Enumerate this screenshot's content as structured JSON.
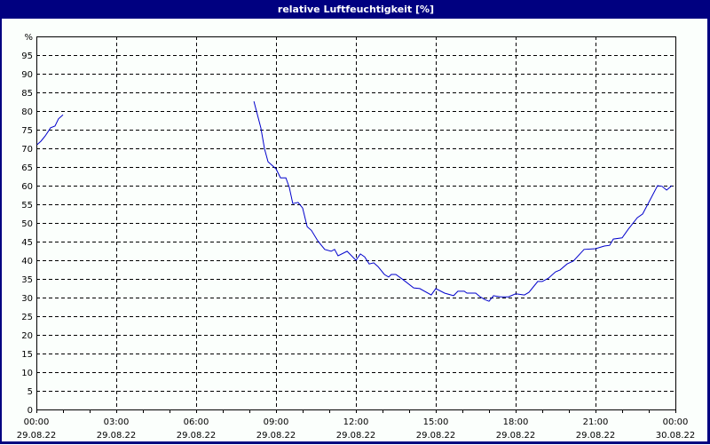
{
  "window": {
    "title": "relative Luftfeuchtigkeit [%]"
  },
  "colors": {
    "titlebar_bg": "#000080",
    "titlebar_text": "#ffffff",
    "line": "#0000cc",
    "grid": "#000000",
    "background": "#fbfffc"
  },
  "chart_data": {
    "type": "line",
    "title": "relative Luftfeuchtigkeit [%]",
    "xlabel": "",
    "ylabel": "%",
    "ylim": [
      0,
      100
    ],
    "xlim_hours": [
      0,
      24
    ],
    "grid": true,
    "legend": null,
    "y_ticks": [
      "0",
      "5",
      "10",
      "15",
      "20",
      "25",
      "30",
      "35",
      "40",
      "45",
      "50",
      "55",
      "60",
      "65",
      "70",
      "75",
      "80",
      "85",
      "90",
      "95",
      "%"
    ],
    "x_ticks": [
      {
        "time": "00:00",
        "date": "29.08.22"
      },
      {
        "time": "03:00",
        "date": "29.08.22"
      },
      {
        "time": "06:00",
        "date": "29.08.22"
      },
      {
        "time": "09:00",
        "date": "29.08.22"
      },
      {
        "time": "12:00",
        "date": "29.08.22"
      },
      {
        "time": "15:00",
        "date": "29.08.22"
      },
      {
        "time": "18:00",
        "date": "29.08.22"
      },
      {
        "time": "21:00",
        "date": "29.08.22"
      },
      {
        "time": "00:00",
        "date": "30.08.22"
      }
    ],
    "series": [
      {
        "name": "relative Luftfeuchtigkeit",
        "segments": [
          {
            "x_hours": [
              0.03,
              0.17,
              0.33,
              0.47,
              0.53,
              0.7,
              0.83,
              1.0
            ],
            "values": [
              71,
              71.9,
              73.3,
              74.8,
              75.5,
              76,
              77.9,
              79
            ]
          },
          {
            "x_hours": [
              8.17,
              8.43,
              8.57,
              8.7,
              9.0,
              9.17,
              9.37,
              9.5,
              9.63,
              9.83,
              10.0,
              10.17,
              10.33,
              10.57,
              10.83,
              11.07,
              11.2,
              11.33,
              11.67,
              12.0,
              12.17,
              12.33,
              12.5,
              12.67,
              12.83,
              13.07,
              13.23,
              13.33,
              13.5,
              13.77,
              14.17,
              14.4,
              14.83,
              15.0,
              15.33,
              15.67,
              15.83,
              16.07,
              16.17,
              16.5,
              16.67,
              16.83,
              17.0,
              17.17,
              17.43,
              17.73,
              18.0,
              18.33,
              18.5,
              18.83,
              19.0,
              19.23,
              19.5,
              19.67,
              19.93,
              20.17,
              20.57,
              21.0,
              21.33,
              21.53,
              21.67,
              22.0,
              22.23,
              22.57,
              22.77,
              23.0,
              23.33,
              23.5,
              23.67,
              23.87
            ],
            "values": [
              82.6,
              75.5,
              69.8,
              66.4,
              64.5,
              62.1,
              62.1,
              59.5,
              55.2,
              55.5,
              54,
              49,
              48,
              45.2,
              42.9,
              42.4,
              42.9,
              41.2,
              42.4,
              40,
              41.7,
              40.9,
              39,
              39.3,
              38.3,
              36.2,
              35.5,
              36.2,
              36.2,
              34.8,
              32.6,
              32.4,
              30.7,
              32.4,
              31.2,
              30.5,
              31.7,
              31.7,
              31.2,
              31.2,
              30.2,
              29.5,
              29,
              30.5,
              30.2,
              30.2,
              31,
              30.7,
              31.4,
              34.3,
              34.3,
              35.2,
              36.9,
              37.4,
              39,
              39.8,
              42.9,
              43.1,
              43.8,
              44,
              45.7,
              46,
              48.3,
              51.4,
              52.4,
              55.5,
              60,
              59.8,
              58.8,
              60
            ]
          }
        ]
      }
    ]
  }
}
